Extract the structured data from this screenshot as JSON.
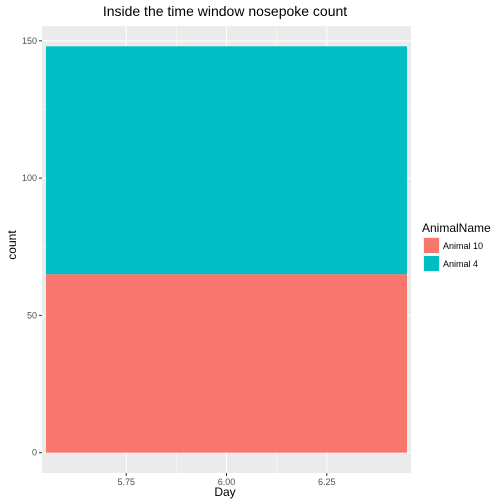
{
  "chart_data": {
    "type": "bar",
    "title": "Inside the time window nosepoke count",
    "xlabel": "Day",
    "ylabel": "count",
    "x_ticks": [
      "5.75",
      "6.00",
      "6.25"
    ],
    "x_tick_values": [
      5.75,
      6.0,
      6.25
    ],
    "y_ticks": [
      "0",
      "50",
      "100",
      "150"
    ],
    "y_tick_values": [
      0,
      50,
      100,
      150
    ],
    "xlim": [
      5.54,
      6.46
    ],
    "ylim": [
      -7.4,
      155.4
    ],
    "bar": {
      "x": 6.0,
      "width": 0.9
    },
    "stacked": true,
    "legend": {
      "title": "AnimalName",
      "position": "right"
    },
    "series": [
      {
        "name": "Animal 10",
        "value": 65,
        "color": "#F8766D"
      },
      {
        "name": "Animal 4",
        "value": 83,
        "color": "#00BFC4"
      }
    ],
    "grid": true,
    "panel_background": "#EBEBEB",
    "grid_color": "#FFFFFF"
  }
}
